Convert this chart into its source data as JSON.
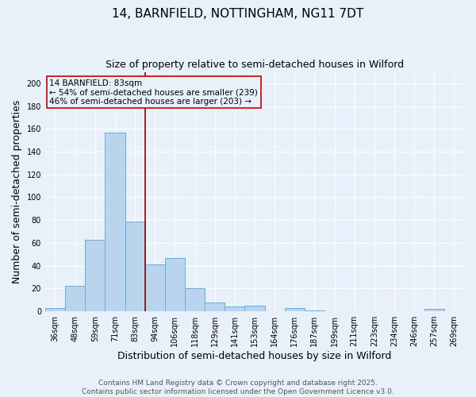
{
  "title1": "14, BARNFIELD, NOTTINGHAM, NG11 7DT",
  "title2": "Size of property relative to semi-detached houses in Wilford",
  "xlabel": "Distribution of semi-detached houses by size in Wilford",
  "ylabel": "Number of semi-detached properties",
  "categories": [
    "36sqm",
    "48sqm",
    "59sqm",
    "71sqm",
    "83sqm",
    "94sqm",
    "106sqm",
    "118sqm",
    "129sqm",
    "141sqm",
    "153sqm",
    "164sqm",
    "176sqm",
    "187sqm",
    "199sqm",
    "211sqm",
    "223sqm",
    "234sqm",
    "246sqm",
    "257sqm",
    "269sqm"
  ],
  "values": [
    3,
    22,
    63,
    157,
    79,
    41,
    47,
    20,
    8,
    4,
    5,
    0,
    3,
    1,
    0,
    0,
    0,
    0,
    0,
    2,
    0
  ],
  "bar_color": "#bad4ee",
  "bar_edge_color": "#6aaed6",
  "highlight_bar_index": 4,
  "highlight_line_color": "#8b0000",
  "annotation_box_text": "14 BARNFIELD: 83sqm\n← 54% of semi-detached houses are smaller (239)\n46% of semi-detached houses are larger (203) →",
  "annotation_box_edge_color": "#cc0000",
  "ylim": [
    0,
    210
  ],
  "yticks": [
    0,
    20,
    40,
    60,
    80,
    100,
    120,
    140,
    160,
    180,
    200
  ],
  "background_color": "#e8f0fa",
  "grid_color": "#ffffff",
  "footer_line1": "Contains HM Land Registry data © Crown copyright and database right 2025.",
  "footer_line2": "Contains public sector information licensed under the Open Government Licence v3.0.",
  "title1_fontsize": 11,
  "title2_fontsize": 9,
  "tick_fontsize": 7,
  "label_fontsize": 9,
  "annotation_fontsize": 7.5,
  "footer_fontsize": 6.5
}
